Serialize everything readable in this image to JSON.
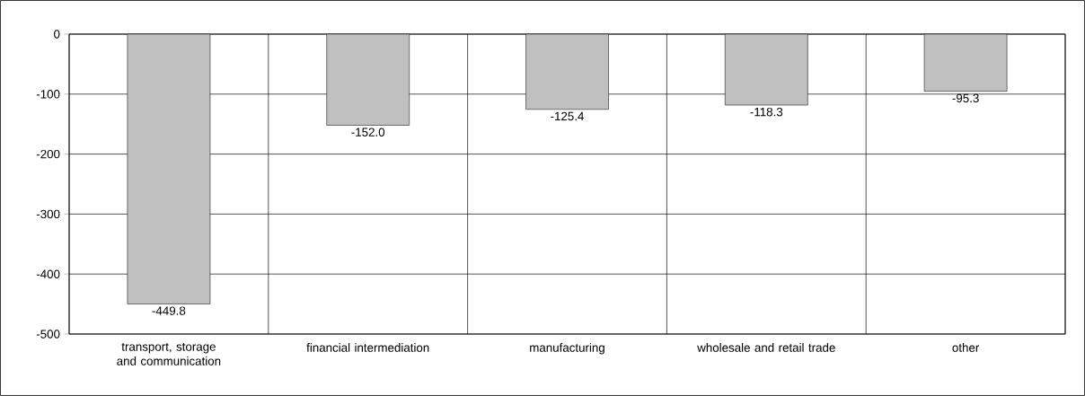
{
  "chart_data": {
    "type": "bar",
    "categories": [
      "transport, storage and communication",
      "financial intermediation",
      "manufacturing",
      "wholesale and retail trade",
      "other"
    ],
    "values": [
      -449.8,
      -152.0,
      -125.4,
      -118.3,
      -95.3
    ],
    "value_labels": [
      "-449.8",
      "-152.0",
      "-125.4",
      "-118.3",
      "-95.3"
    ],
    "color": "#c0c0c0",
    "ylim": [
      -500,
      0
    ],
    "yticks": [
      -500,
      -400,
      -300,
      -200,
      -100,
      0
    ],
    "grid": true
  }
}
